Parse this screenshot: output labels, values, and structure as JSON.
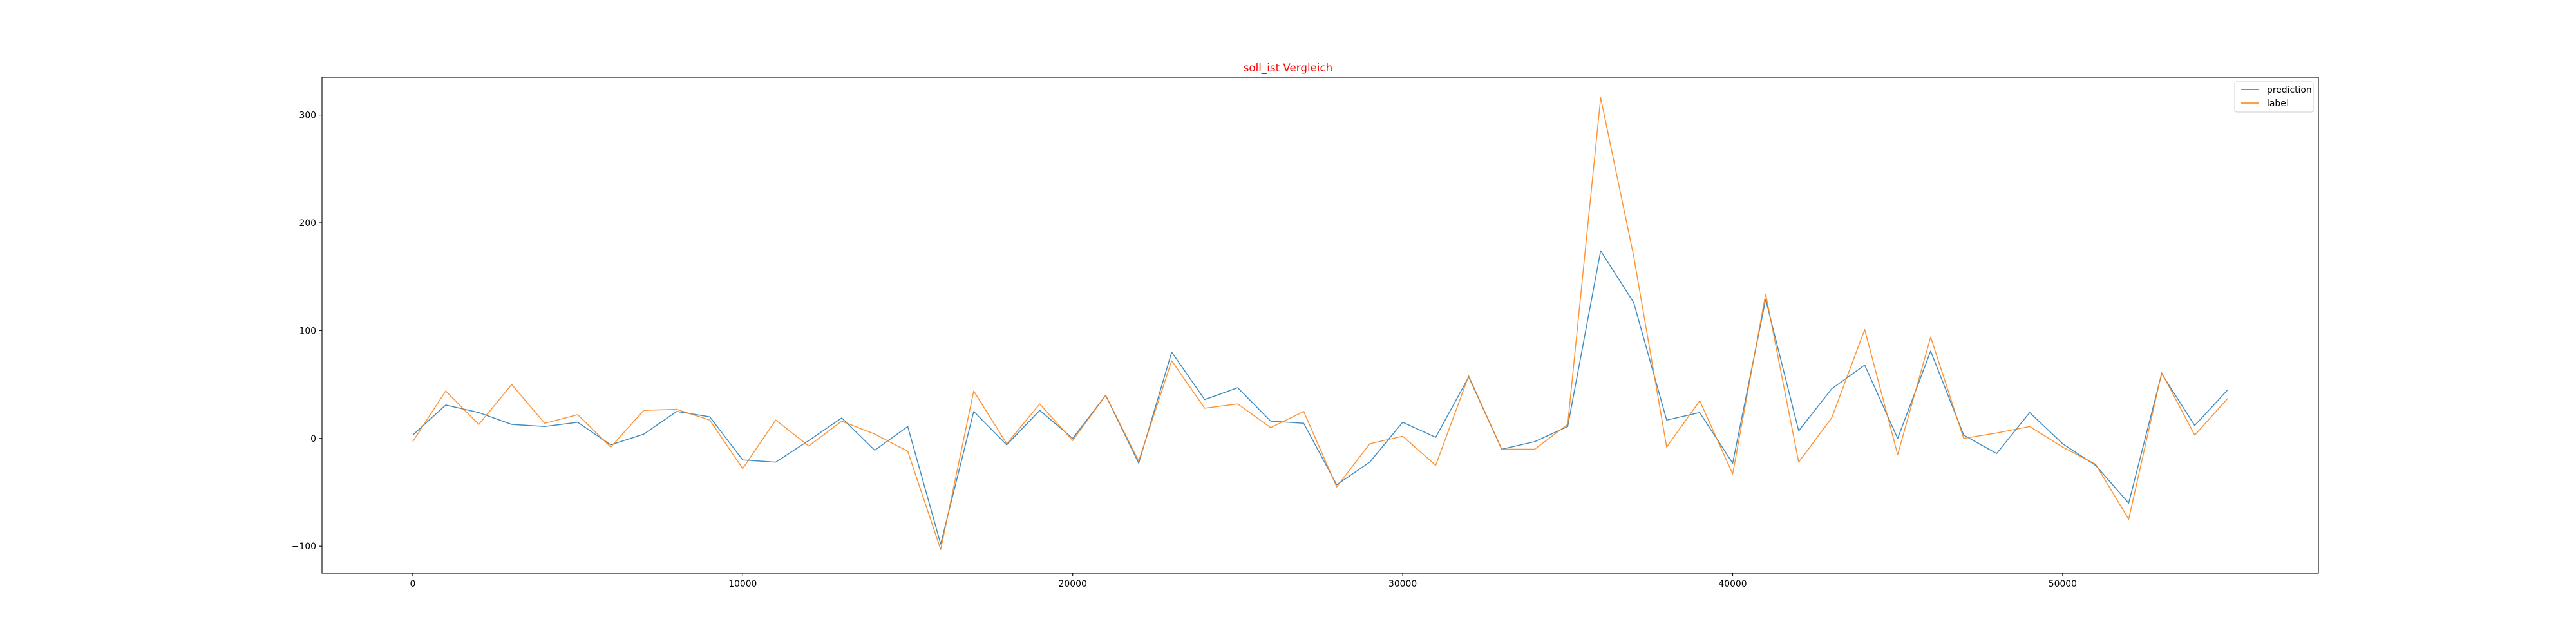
{
  "chart_data": {
    "type": "line",
    "title": "soll_ist Vergleich",
    "title_color": "#ff0000",
    "xlabel": "",
    "ylabel": "",
    "xlim": [
      -2750,
      57750
    ],
    "ylim": [
      -125,
      335
    ],
    "xticks": [
      0,
      10000,
      20000,
      30000,
      40000,
      50000
    ],
    "xtick_labels": [
      "0",
      "10000",
      "20000",
      "30000",
      "40000",
      "50000"
    ],
    "yticks": [
      -100,
      0,
      100,
      200,
      300
    ],
    "ytick_labels": [
      "−100",
      "0",
      "100",
      "200",
      "300"
    ],
    "grid": false,
    "legend_position": "upper right",
    "x": [
      0,
      1000,
      2000,
      3000,
      4000,
      5000,
      6000,
      7000,
      8000,
      9000,
      10000,
      11000,
      12000,
      13000,
      14000,
      15000,
      16000,
      17000,
      18000,
      19000,
      20000,
      21000,
      22000,
      23000,
      24000,
      25000,
      26000,
      27000,
      28000,
      29000,
      30000,
      31000,
      32000,
      33000,
      34000,
      35000,
      36000,
      37000,
      38000,
      39000,
      40000,
      41000,
      42000,
      43000,
      44000,
      45000,
      46000,
      47000,
      48000,
      49000,
      50000,
      51000,
      52000,
      53000,
      54000,
      55000
    ],
    "series": [
      {
        "name": "prediction",
        "color": "#1f77b4",
        "values": [
          3,
          31,
          24,
          13,
          11,
          15,
          -6,
          4,
          25,
          20,
          -20,
          -22,
          -2,
          19,
          -11,
          11,
          -98,
          25,
          -6,
          26,
          0,
          40,
          -23,
          80,
          36,
          47,
          16,
          14,
          -43,
          -22,
          15,
          1,
          57,
          -10,
          -3,
          11,
          174,
          126,
          17,
          24,
          -23,
          129,
          7,
          46,
          68,
          0,
          81,
          3,
          -14,
          24,
          -5,
          -25,
          -60,
          60,
          12,
          45
        ]
      },
      {
        "name": "label",
        "color": "#ff7f0e",
        "values": [
          -3,
          44,
          13,
          50,
          14,
          22,
          -8,
          26,
          27,
          17,
          -28,
          17,
          -7,
          16,
          4,
          -12,
          -103,
          44,
          -5,
          32,
          -2,
          40,
          -21,
          72,
          28,
          32,
          10,
          25,
          -45,
          -5,
          2,
          -25,
          58,
          -10,
          -10,
          13,
          316,
          169,
          -8,
          35,
          -33,
          134,
          -22,
          19,
          101,
          -15,
          94,
          0,
          5,
          11,
          -8,
          -24,
          -75,
          61,
          3,
          37
        ]
      }
    ]
  }
}
